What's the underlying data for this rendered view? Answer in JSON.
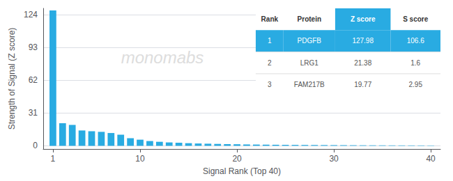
{
  "chart_data": {
    "type": "bar",
    "x": [
      1,
      2,
      3,
      4,
      5,
      6,
      7,
      8,
      9,
      10,
      11,
      12,
      13,
      14,
      15,
      16,
      17,
      18,
      19,
      20,
      21,
      22,
      23,
      24,
      25,
      26,
      27,
      28,
      29,
      30,
      31,
      32,
      33,
      34,
      35,
      36,
      37,
      38,
      39,
      40
    ],
    "values": [
      127.98,
      21.38,
      19.77,
      14.5,
      13.8,
      13.2,
      12.1,
      10.5,
      7.2,
      5.8,
      4.5,
      3.8,
      3.2,
      2.9,
      2.5,
      2.2,
      2.0,
      1.8,
      1.6,
      1.5,
      1.3,
      1.2,
      1.1,
      1.0,
      0.9,
      0.85,
      0.8,
      0.75,
      0.7,
      0.65,
      0.6,
      0.55,
      0.5,
      0.48,
      0.45,
      0.42,
      0.4,
      0.38,
      0.35,
      0.3
    ],
    "color": "#29abe2",
    "xlabel": "Signal Rank (Top 40)",
    "ylabel": "Strength of Signal (Z score)",
    "xlim": [
      0,
      41
    ],
    "ylim": [
      -3,
      130
    ],
    "xticks": [
      1,
      10,
      20,
      30,
      40
    ],
    "yticks": [
      0,
      31,
      62,
      93,
      124
    ],
    "grid": true,
    "annotations": [
      {
        "text": "monomabs",
        "color": "#dddddd"
      }
    ],
    "table": {
      "headers": [
        "Rank",
        "Protein",
        "Z score",
        "S score"
      ],
      "rows": [
        [
          "1",
          "PDGFB",
          "127.98",
          "106.6"
        ],
        [
          "2",
          "LRG1",
          "21.38",
          "1.6"
        ],
        [
          "3",
          "FAM217B",
          "19.77",
          "2.95"
        ]
      ]
    }
  }
}
